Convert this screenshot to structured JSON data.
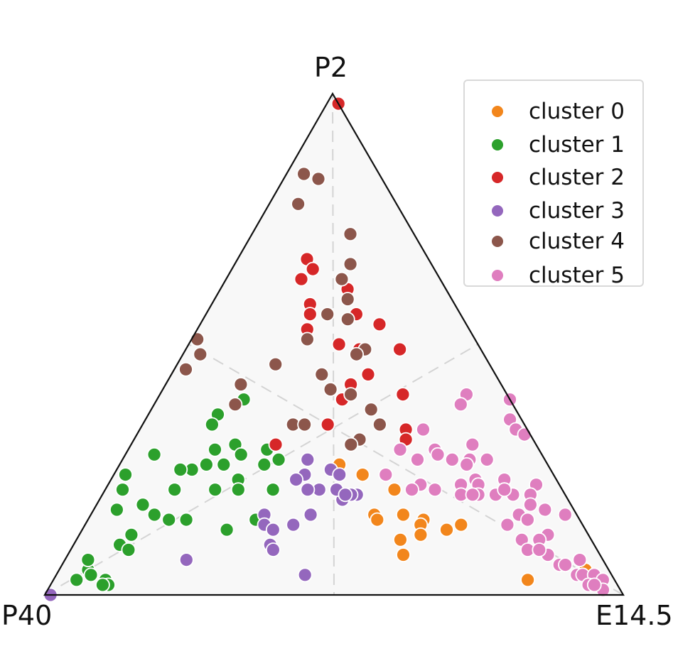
{
  "chart_data": {
    "type": "scatter",
    "projection": "ternary",
    "vertices": [
      "P2",
      "P40",
      "E14.5"
    ],
    "component_order": [
      "P2",
      "P40",
      "E14.5"
    ],
    "grid": "dashed median lines",
    "legend_placement": "top-right",
    "series": [
      {
        "name": "cluster 0",
        "color": "#f2861c",
        "points": [
          [
            0.26,
            0.36,
            0.38
          ],
          [
            0.24,
            0.33,
            0.43
          ],
          [
            0.21,
            0.29,
            0.5
          ],
          [
            0.16,
            0.35,
            0.49
          ],
          [
            0.15,
            0.35,
            0.5
          ],
          [
            0.16,
            0.3,
            0.54
          ],
          [
            0.15,
            0.27,
            0.58
          ],
          [
            0.14,
            0.28,
            0.58
          ],
          [
            0.11,
            0.33,
            0.56
          ],
          [
            0.12,
            0.29,
            0.59
          ],
          [
            0.08,
            0.34,
            0.58
          ],
          [
            0.14,
            0.21,
            0.65
          ],
          [
            0.13,
            0.24,
            0.63
          ],
          [
            0.03,
            0.15,
            0.82
          ],
          [
            0.05,
            0.04,
            0.91
          ]
        ]
      },
      {
        "name": "cluster 1",
        "color": "#2ca02c",
        "points": [
          [
            0.39,
            0.46,
            0.15
          ],
          [
            0.36,
            0.52,
            0.12
          ],
          [
            0.34,
            0.54,
            0.12
          ],
          [
            0.29,
            0.56,
            0.15
          ],
          [
            0.3,
            0.52,
            0.18
          ],
          [
            0.29,
            0.47,
            0.24
          ],
          [
            0.3,
            0.52,
            0.18
          ],
          [
            0.28,
            0.52,
            0.2
          ],
          [
            0.26,
            0.59,
            0.15
          ],
          [
            0.25,
            0.62,
            0.13
          ],
          [
            0.26,
            0.49,
            0.25
          ],
          [
            0.27,
            0.46,
            0.27
          ],
          [
            0.25,
            0.64,
            0.11
          ],
          [
            0.21,
            0.67,
            0.12
          ],
          [
            0.23,
            0.55,
            0.22
          ],
          [
            0.21,
            0.56,
            0.23
          ],
          [
            0.21,
            0.5,
            0.29
          ],
          [
            0.28,
            0.67,
            0.05
          ],
          [
            0.24,
            0.74,
            0.02
          ],
          [
            0.21,
            0.76,
            0.03
          ],
          [
            0.18,
            0.74,
            0.08
          ],
          [
            0.17,
            0.79,
            0.04
          ],
          [
            0.16,
            0.73,
            0.11
          ],
          [
            0.15,
            0.71,
            0.14
          ],
          [
            0.15,
            0.68,
            0.17
          ],
          [
            0.21,
            0.6,
            0.19
          ],
          [
            0.26,
            0.56,
            0.18
          ],
          [
            0.23,
            0.45,
            0.32
          ],
          [
            0.13,
            0.62,
            0.25
          ],
          [
            0.15,
            0.56,
            0.29
          ],
          [
            0.12,
            0.79,
            0.09
          ],
          [
            0.1,
            0.82,
            0.08
          ],
          [
            0.09,
            0.81,
            0.1
          ],
          [
            0.05,
            0.9,
            0.05
          ],
          [
            0.04,
            0.9,
            0.06
          ],
          [
            0.07,
            0.89,
            0.04
          ],
          [
            0.03,
            0.88,
            0.09
          ],
          [
            0.03,
            0.93,
            0.04
          ],
          [
            0.02,
            0.88,
            0.1
          ],
          [
            0.02,
            0.89,
            0.09
          ]
        ]
      },
      {
        "name": "cluster 2",
        "color": "#d62728",
        "points": [
          [
            0.98,
            0.0,
            0.02
          ],
          [
            0.67,
            0.21,
            0.12
          ],
          [
            0.65,
            0.21,
            0.14
          ],
          [
            0.63,
            0.24,
            0.13
          ],
          [
            0.58,
            0.25,
            0.17
          ],
          [
            0.56,
            0.26,
            0.18
          ],
          [
            0.53,
            0.28,
            0.19
          ],
          [
            0.61,
            0.17,
            0.22
          ],
          [
            0.56,
            0.18,
            0.26
          ],
          [
            0.54,
            0.15,
            0.31
          ],
          [
            0.5,
            0.24,
            0.26
          ],
          [
            0.49,
            0.21,
            0.3
          ],
          [
            0.49,
            0.14,
            0.37
          ],
          [
            0.44,
            0.22,
            0.34
          ],
          [
            0.42,
            0.26,
            0.32
          ],
          [
            0.39,
            0.29,
            0.32
          ],
          [
            0.4,
            0.18,
            0.42
          ],
          [
            0.34,
            0.34,
            0.32
          ],
          [
            0.33,
            0.21,
            0.46
          ],
          [
            0.3,
            0.45,
            0.25
          ],
          [
            0.31,
            0.22,
            0.47
          ]
        ]
      },
      {
        "name": "cluster 3",
        "color": "#9467bd",
        "points": [
          [
            0.27,
            0.41,
            0.32
          ],
          [
            0.25,
            0.38,
            0.37
          ],
          [
            0.24,
            0.43,
            0.33
          ],
          [
            0.24,
            0.37,
            0.39
          ],
          [
            0.23,
            0.45,
            0.32
          ],
          [
            0.21,
            0.42,
            0.37
          ],
          [
            0.21,
            0.44,
            0.35
          ],
          [
            0.19,
            0.39,
            0.42
          ],
          [
            0.21,
            0.39,
            0.4
          ],
          [
            0.2,
            0.36,
            0.44
          ],
          [
            0.2,
            0.37,
            0.43
          ],
          [
            0.2,
            0.38,
            0.42
          ],
          [
            0.16,
            0.54,
            0.3
          ],
          [
            0.16,
            0.46,
            0.38
          ],
          [
            0.14,
            0.55,
            0.31
          ],
          [
            0.14,
            0.5,
            0.36
          ],
          [
            0.13,
            0.54,
            0.33
          ],
          [
            0.1,
            0.56,
            0.34
          ],
          [
            0.09,
            0.56,
            0.35
          ],
          [
            0.07,
            0.72,
            0.21
          ],
          [
            0.04,
            0.53,
            0.43
          ],
          [
            0.0,
            0.99,
            0.01
          ]
        ]
      },
      {
        "name": "cluster 4",
        "color": "#8c564b",
        "points": [
          [
            0.84,
            0.13,
            0.03
          ],
          [
            0.83,
            0.11,
            0.06
          ],
          [
            0.78,
            0.17,
            0.05
          ],
          [
            0.72,
            0.11,
            0.17
          ],
          [
            0.66,
            0.14,
            0.2
          ],
          [
            0.63,
            0.17,
            0.2
          ],
          [
            0.59,
            0.18,
            0.23
          ],
          [
            0.56,
            0.23,
            0.21
          ],
          [
            0.55,
            0.2,
            0.25
          ],
          [
            0.51,
            0.29,
            0.2
          ],
          [
            0.49,
            0.2,
            0.31
          ],
          [
            0.48,
            0.22,
            0.3
          ],
          [
            0.51,
            0.48,
            0.01
          ],
          [
            0.48,
            0.49,
            0.03
          ],
          [
            0.45,
            0.53,
            0.02
          ],
          [
            0.46,
            0.37,
            0.17
          ],
          [
            0.44,
            0.3,
            0.26
          ],
          [
            0.41,
            0.3,
            0.29
          ],
          [
            0.42,
            0.45,
            0.13
          ],
          [
            0.38,
            0.48,
            0.14
          ],
          [
            0.37,
            0.25,
            0.38
          ],
          [
            0.4,
            0.27,
            0.33
          ],
          [
            0.34,
            0.4,
            0.26
          ],
          [
            0.34,
            0.38,
            0.28
          ],
          [
            0.34,
            0.25,
            0.41
          ],
          [
            0.31,
            0.3,
            0.39
          ],
          [
            0.3,
            0.32,
            0.38
          ]
        ]
      },
      {
        "name": "cluster 5",
        "color": "#df7ebf",
        "points": [
          [
            0.4,
            0.07,
            0.53
          ],
          [
            0.39,
            0.0,
            0.61
          ],
          [
            0.38,
            0.09,
            0.53
          ],
          [
            0.35,
            0.02,
            0.63
          ],
          [
            0.33,
            0.18,
            0.49
          ],
          [
            0.33,
            0.02,
            0.65
          ],
          [
            0.32,
            0.01,
            0.67
          ],
          [
            0.3,
            0.11,
            0.59
          ],
          [
            0.29,
            0.24,
            0.47
          ],
          [
            0.29,
            0.18,
            0.53
          ],
          [
            0.28,
            0.18,
            0.54
          ],
          [
            0.27,
            0.16,
            0.57
          ],
          [
            0.27,
            0.22,
            0.51
          ],
          [
            0.27,
            0.13,
            0.6
          ],
          [
            0.27,
            0.1,
            0.63
          ],
          [
            0.26,
            0.14,
            0.6
          ],
          [
            0.24,
            0.29,
            0.47
          ],
          [
            0.23,
            0.09,
            0.68
          ],
          [
            0.23,
            0.14,
            0.63
          ],
          [
            0.22,
            0.04,
            0.74
          ],
          [
            0.22,
            0.14,
            0.64
          ],
          [
            0.22,
            0.24,
            0.54
          ],
          [
            0.21,
            0.1,
            0.69
          ],
          [
            0.2,
            0.09,
            0.71
          ],
          [
            0.22,
            0.17,
            0.61
          ],
          [
            0.2,
            0.15,
            0.65
          ],
          [
            0.2,
            0.06,
            0.74
          ],
          [
            0.18,
            0.07,
            0.75
          ],
          [
            0.17,
            0.05,
            0.78
          ],
          [
            0.2,
            0.18,
            0.62
          ],
          [
            0.2,
            0.12,
            0.68
          ],
          [
            0.21,
            0.22,
            0.57
          ],
          [
            0.21,
            0.26,
            0.53
          ],
          [
            0.2,
            0.16,
            0.64
          ],
          [
            0.16,
            0.1,
            0.74
          ],
          [
            0.16,
            0.02,
            0.82
          ],
          [
            0.14,
            0.13,
            0.73
          ],
          [
            0.12,
            0.07,
            0.81
          ],
          [
            0.11,
            0.12,
            0.77
          ],
          [
            0.11,
            0.09,
            0.8
          ],
          [
            0.09,
            0.12,
            0.79
          ],
          [
            0.08,
            0.09,
            0.83
          ],
          [
            0.07,
            0.04,
            0.89
          ],
          [
            0.06,
            0.08,
            0.86
          ],
          [
            0.06,
            0.07,
            0.87
          ],
          [
            0.04,
            0.06,
            0.9
          ],
          [
            0.04,
            0.05,
            0.91
          ],
          [
            0.04,
            0.03,
            0.93
          ],
          [
            0.02,
            0.05,
            0.93
          ],
          [
            0.03,
            0.02,
            0.95
          ],
          [
            0.01,
            0.03,
            0.96
          ],
          [
            0.02,
            0.04,
            0.94
          ],
          [
            0.09,
            0.1,
            0.81
          ],
          [
            0.15,
            0.09,
            0.76
          ],
          [
            0.21,
            0.1,
            0.69
          ]
        ]
      }
    ]
  }
}
